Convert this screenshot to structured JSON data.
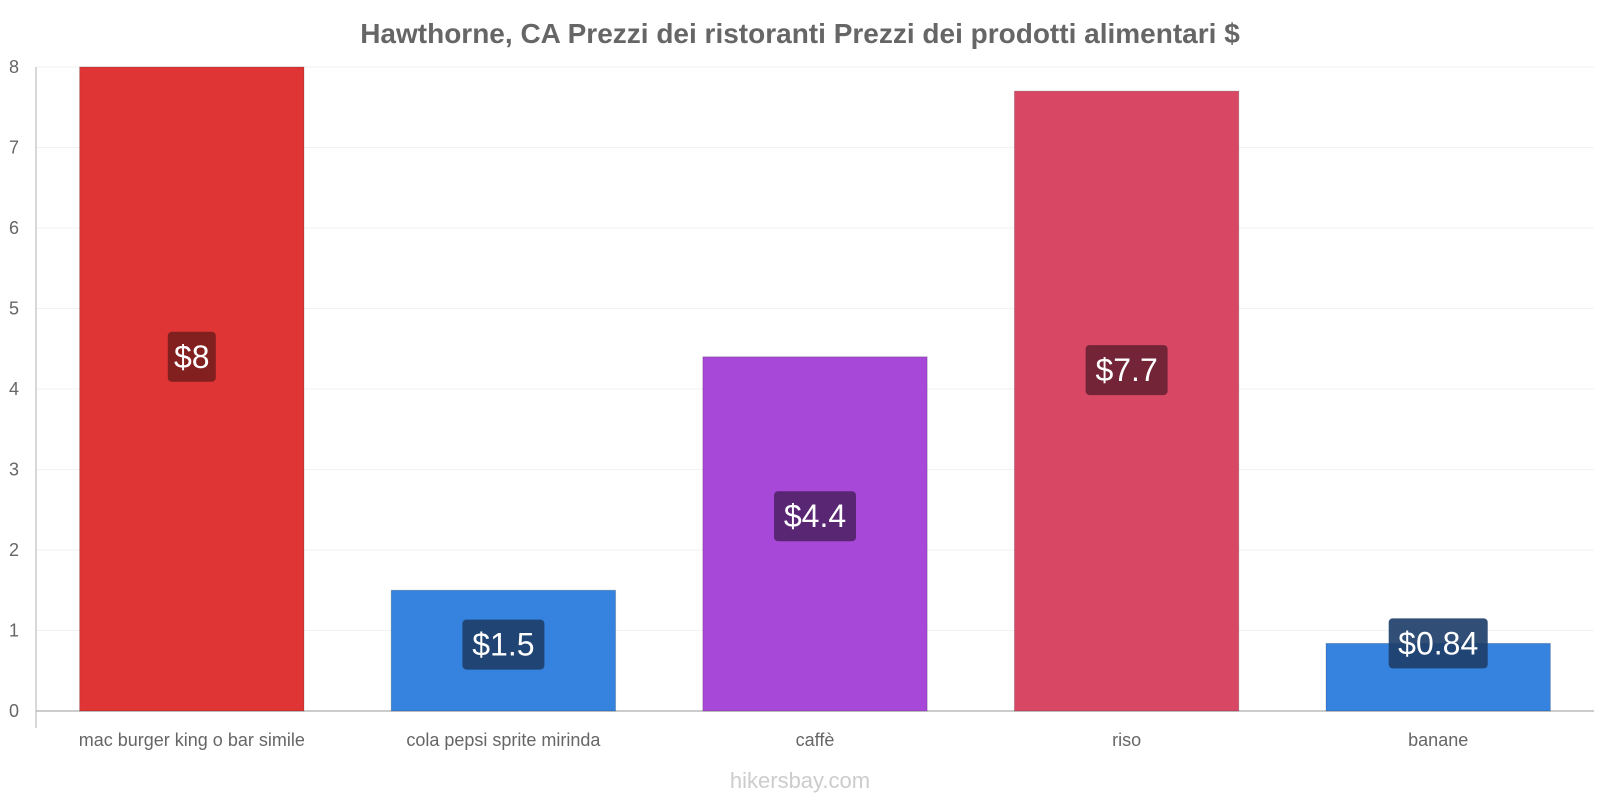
{
  "chart_data": {
    "type": "bar",
    "title": "Hawthorne, CA Prezzi dei ristoranti Prezzi dei prodotti alimentari $",
    "xlabel": "",
    "ylabel": "",
    "ylim": [
      0,
      8
    ],
    "yticks": [
      0,
      1,
      2,
      3,
      4,
      5,
      6,
      7,
      8
    ],
    "grid": true,
    "legend": "none",
    "categories": [
      "mac burger king o bar simile",
      "cola pepsi sprite mirinda",
      "caffè",
      "riso",
      "banane"
    ],
    "values": [
      8,
      1.5,
      4.4,
      7.7,
      0.84
    ],
    "data_labels": [
      "$8",
      "$1.5",
      "$4.4",
      "$7.7",
      "$0.84"
    ],
    "bar_colors": [
      "#e03535",
      "#3583df",
      "#a748d8",
      "#d84865",
      "#3583df"
    ],
    "label_bg_colors": [
      "#7a1d1d",
      "#1e3f6a",
      "#52246a",
      "#6a2233",
      "#1e3f6a"
    ]
  },
  "watermark": "hikersbay.com"
}
